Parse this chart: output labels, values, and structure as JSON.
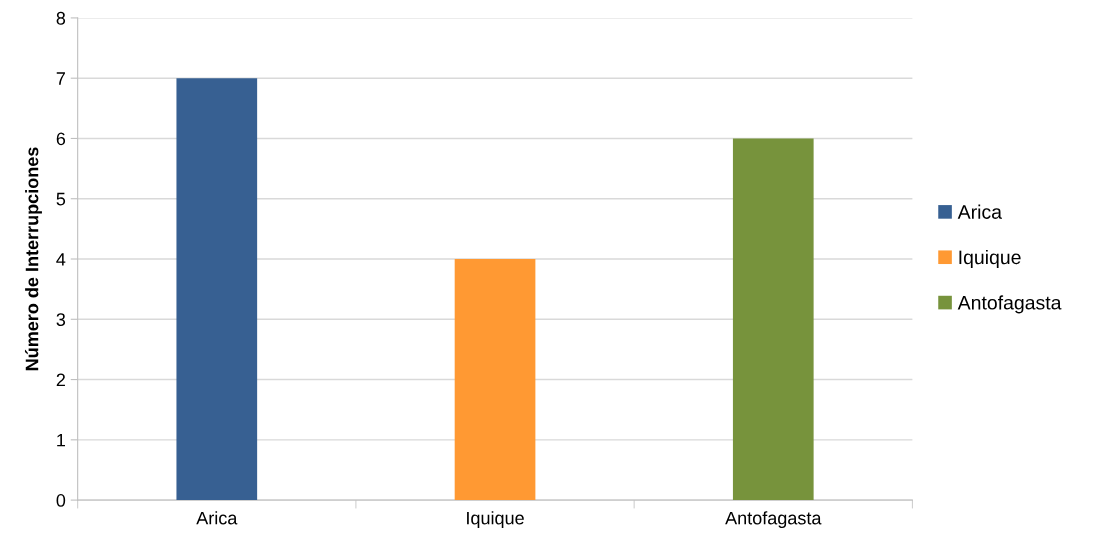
{
  "chart_data": {
    "type": "bar",
    "ylabel": "Número de Interrupciones",
    "categories": [
      "Arica",
      "Iquique",
      "Antofagasta"
    ],
    "stacked": true,
    "series": [
      {
        "name": "Arica",
        "color": "#376092",
        "values": [
          7,
          null,
          null
        ]
      },
      {
        "name": "Iquique",
        "color": "#ff9933",
        "values": [
          null,
          4,
          null
        ]
      },
      {
        "name": "Antofagasta",
        "color": "#77933c",
        "values": [
          null,
          null,
          6
        ]
      }
    ],
    "ylim": [
      0,
      8
    ],
    "yticks": [
      0,
      1,
      2,
      3,
      4,
      5,
      6,
      7,
      8
    ],
    "grid": "y",
    "legend": "right"
  }
}
